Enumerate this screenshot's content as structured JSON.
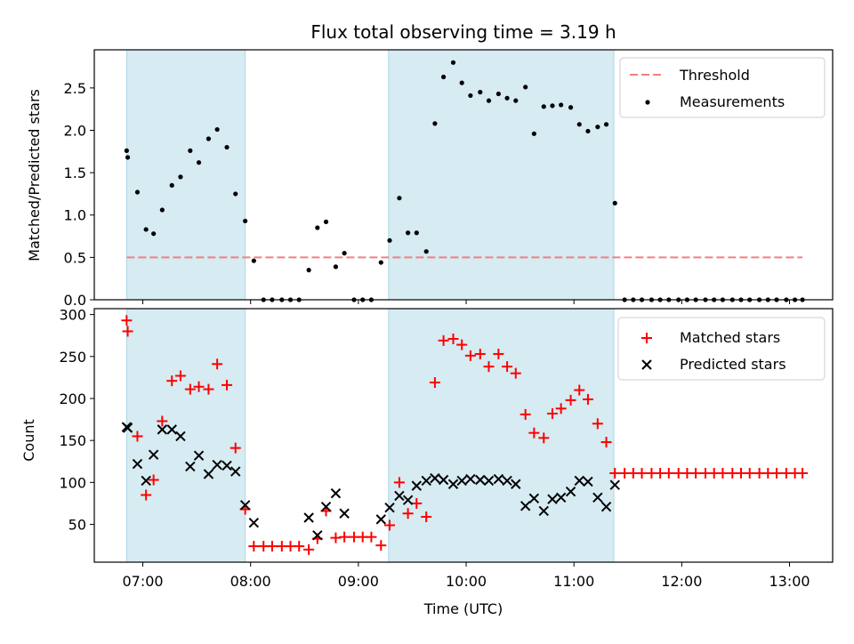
{
  "chart_data": [
    {
      "type": "scatter",
      "panel": "top",
      "title": "Flux total observing time = 3.19 h",
      "xlabel": "",
      "ylabel": "Matched/Predicted stars",
      "ylim": [
        0,
        2.95
      ],
      "xlim": [
        6.55,
        13.4
      ],
      "yticks": [
        0.0,
        0.5,
        1.0,
        1.5,
        2.0,
        2.5
      ],
      "ytick_labels": [
        "0.0",
        "0.5",
        "1.0",
        "1.5",
        "2.0",
        "2.5"
      ],
      "legend_position": "top-right",
      "shaded_intervals": [
        [
          6.85,
          7.95
        ],
        [
          9.28,
          11.37
        ]
      ],
      "threshold": {
        "name": "Threshold",
        "value": 0.5,
        "x_range": [
          6.85,
          13.12
        ],
        "color": "#f08080",
        "style": "dashed"
      },
      "series": [
        {
          "name": "Measurements",
          "color": "#000000",
          "marker": "dot",
          "x": [
            6.85,
            6.86,
            6.95,
            7.03,
            7.1,
            7.18,
            7.27,
            7.35,
            7.44,
            7.52,
            7.61,
            7.69,
            7.78,
            7.86,
            7.95,
            8.03,
            8.12,
            8.2,
            8.29,
            8.37,
            8.45,
            8.54,
            8.62,
            8.7,
            8.79,
            8.87,
            8.96,
            9.04,
            9.12,
            9.21,
            9.29,
            9.38,
            9.46,
            9.54,
            9.63,
            9.71,
            9.79,
            9.88,
            9.96,
            10.04,
            10.13,
            10.21,
            10.3,
            10.38,
            10.46,
            10.55,
            10.63,
            10.72,
            10.8,
            10.88,
            10.97,
            11.05,
            11.13,
            11.22,
            11.3,
            11.38,
            11.47,
            11.55,
            11.63,
            11.72,
            11.8,
            11.88,
            11.97,
            12.05,
            12.13,
            12.22,
            12.3,
            12.38,
            12.47,
            12.55,
            12.63,
            12.72,
            12.8,
            12.88,
            12.97,
            13.05,
            13.12
          ],
          "y": [
            1.76,
            1.68,
            1.27,
            0.83,
            0.78,
            1.06,
            1.35,
            1.45,
            1.76,
            1.62,
            1.9,
            2.01,
            1.8,
            1.25,
            0.93,
            0.46,
            0.0,
            0.0,
            0.0,
            0.0,
            0.0,
            0.35,
            0.85,
            0.92,
            0.39,
            0.55,
            0.0,
            0.0,
            0.0,
            0.44,
            0.7,
            1.2,
            0.79,
            0.79,
            0.57,
            2.08,
            2.63,
            2.8,
            2.56,
            2.41,
            2.45,
            2.35,
            2.43,
            2.38,
            2.35,
            2.51,
            1.96,
            2.28,
            2.29,
            2.3,
            2.27,
            2.07,
            1.99,
            2.04,
            2.07,
            1.14,
            0.0,
            0.0,
            0.0,
            0.0,
            0.0,
            0.0,
            0.0,
            0.0,
            0.0,
            0.0,
            0.0,
            0.0,
            0.0,
            0.0,
            0.0,
            0.0,
            0.0,
            0.0,
            0.0,
            0.0,
            0.0
          ]
        }
      ]
    },
    {
      "type": "scatter",
      "panel": "bottom",
      "title": "",
      "xlabel": "Time (UTC)",
      "ylabel": "Count",
      "ylim": [
        5,
        307
      ],
      "xlim": [
        6.55,
        13.4
      ],
      "xticks": [
        7,
        8,
        9,
        10,
        11,
        12,
        13
      ],
      "xtick_labels": [
        "07:00",
        "08:00",
        "09:00",
        "10:00",
        "11:00",
        "12:00",
        "13:00"
      ],
      "yticks": [
        50,
        100,
        150,
        200,
        250,
        300
      ],
      "ytick_labels": [
        "50",
        "100",
        "150",
        "200",
        "250",
        "300"
      ],
      "legend_position": "top-right",
      "shaded_intervals": [
        [
          6.85,
          7.95
        ],
        [
          9.28,
          11.37
        ]
      ],
      "series": [
        {
          "name": "Matched stars",
          "color": "#ff0000",
          "marker": "plus",
          "x": [
            6.85,
            6.86,
            6.95,
            7.03,
            7.1,
            7.18,
            7.27,
            7.35,
            7.44,
            7.52,
            7.61,
            7.69,
            7.78,
            7.86,
            7.95,
            8.03,
            8.12,
            8.2,
            8.29,
            8.37,
            8.45,
            8.54,
            8.62,
            8.7,
            8.79,
            8.87,
            8.96,
            9.04,
            9.12,
            9.21,
            9.29,
            9.38,
            9.46,
            9.54,
            9.63,
            9.71,
            9.79,
            9.88,
            9.96,
            10.04,
            10.13,
            10.21,
            10.3,
            10.38,
            10.46,
            10.55,
            10.63,
            10.72,
            10.8,
            10.88,
            10.97,
            11.05,
            11.13,
            11.22,
            11.3,
            11.38,
            11.47,
            11.55,
            11.63,
            11.72,
            11.8,
            11.88,
            11.97,
            12.05,
            12.13,
            12.22,
            12.3,
            12.38,
            12.47,
            12.55,
            12.63,
            12.72,
            12.8,
            12.88,
            12.97,
            13.05,
            13.12
          ],
          "y": [
            293,
            280,
            155,
            85,
            103,
            173,
            221,
            227,
            211,
            214,
            211,
            241,
            216,
            141,
            68,
            24,
            24,
            24,
            24,
            24,
            24,
            20,
            33,
            66,
            34,
            35,
            35,
            35,
            35,
            25,
            49,
            100,
            63,
            75,
            59,
            219,
            269,
            271,
            264,
            251,
            253,
            238,
            253,
            238,
            230,
            181,
            159,
            153,
            182,
            188,
            198,
            210,
            199,
            170,
            148,
            111,
            111,
            111,
            111,
            111,
            111,
            111,
            111,
            111,
            111,
            111,
            111,
            111,
            111,
            111,
            111,
            111,
            111,
            111,
            111,
            111,
            111
          ]
        },
        {
          "name": "Predicted stars",
          "color": "#000000",
          "marker": "x",
          "x": [
            6.85,
            6.86,
            6.95,
            7.03,
            7.1,
            7.18,
            7.27,
            7.35,
            7.44,
            7.52,
            7.61,
            7.69,
            7.78,
            7.86,
            7.95,
            8.03,
            8.54,
            8.62,
            8.7,
            8.79,
            8.87,
            9.21,
            9.29,
            9.38,
            9.46,
            9.54,
            9.63,
            9.71,
            9.79,
            9.88,
            9.96,
            10.04,
            10.13,
            10.21,
            10.3,
            10.38,
            10.46,
            10.55,
            10.63,
            10.72,
            10.8,
            10.88,
            10.97,
            11.05,
            11.13,
            11.22,
            11.3,
            11.38
          ],
          "y": [
            166,
            165,
            122,
            102,
            133,
            163,
            163,
            155,
            119,
            132,
            110,
            121,
            120,
            113,
            73,
            52,
            58,
            37,
            71,
            87,
            63,
            56,
            70,
            84,
            79,
            96,
            102,
            105,
            103,
            98,
            102,
            104,
            103,
            102,
            104,
            102,
            98,
            72,
            81,
            66,
            80,
            82,
            89,
            102,
            101,
            82,
            71,
            97
          ]
        }
      ]
    }
  ]
}
